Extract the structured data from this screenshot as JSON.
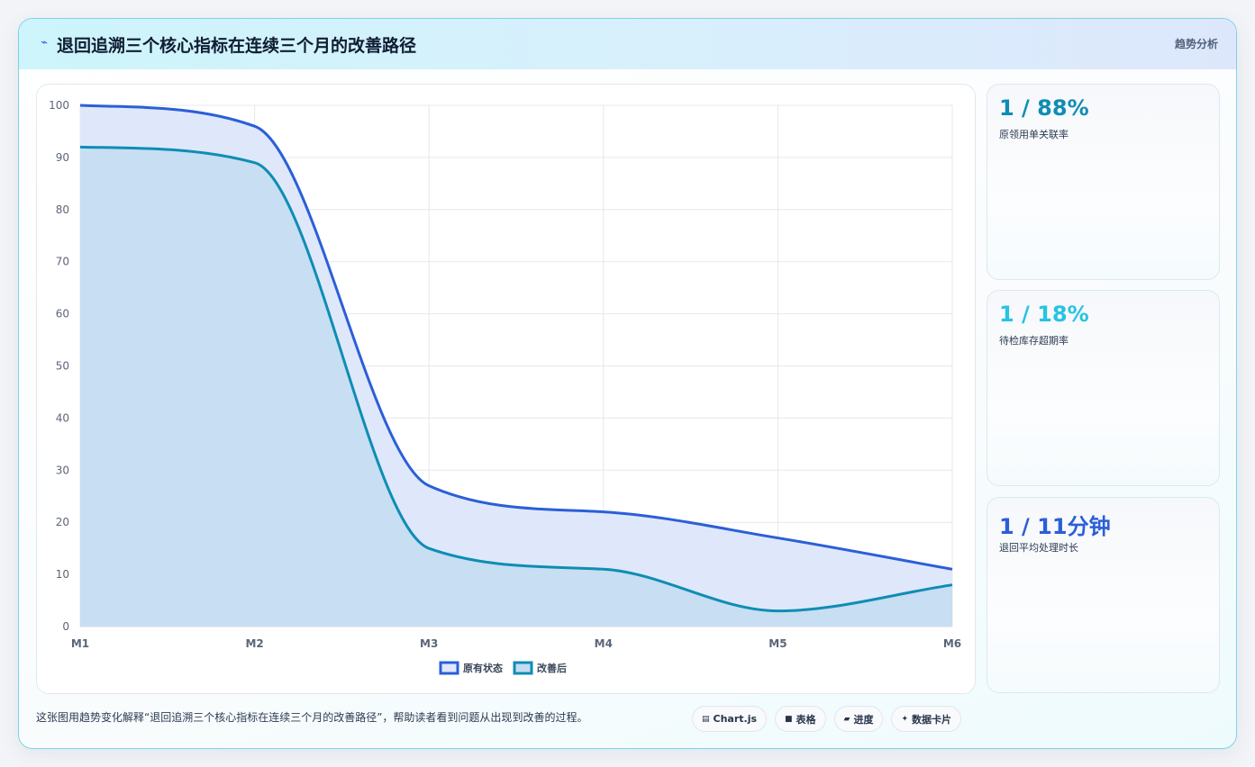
{
  "header": {
    "icon": "lightning-icon",
    "title": "退回追溯三个核心指标在连续三个月的改善路径",
    "badge": "趋势分析"
  },
  "colors": {
    "accent_blue": "#2b5fd8",
    "accent_teal": "#0f8db3",
    "accent_cyan": "#27c3e2",
    "original_fill": "#dfe8fb",
    "improved_fill": "#c4dcf2"
  },
  "chart_data": {
    "type": "area",
    "x": [
      "M1",
      "M2",
      "M3",
      "M4",
      "M5",
      "M6"
    ],
    "ylim": [
      0,
      100
    ],
    "yticks": [
      0,
      10,
      20,
      30,
      40,
      50,
      60,
      70,
      80,
      90,
      100
    ],
    "grid": true,
    "legend_position": "bottom-center",
    "series": [
      {
        "name": "原有状态",
        "values": [
          100,
          96,
          27,
          22,
          17,
          11
        ],
        "color": "#2b5fd8",
        "fill": "#dfe8fb"
      },
      {
        "name": "改善后",
        "values": [
          92,
          89,
          15,
          11,
          3,
          8
        ],
        "color": "#0f8db3",
        "fill": "#c4dcf2"
      }
    ]
  },
  "kpis": [
    {
      "value": "1 / 88%",
      "label": "原领用单关联率",
      "color": "#0f8db3"
    },
    {
      "value": "1 / 18%",
      "label": "待检库存超期率",
      "color": "#27c3e2"
    },
    {
      "value": "1 / 11分钟",
      "label": "退回平均处理时长",
      "color": "#2b5fd8"
    }
  ],
  "footer": {
    "text": "这张图用趋势变化解释“退回追溯三个核心指标在连续三个月的改善路径”，帮助读者看到问题从出现到改善的过程。",
    "chips": [
      {
        "icon": "chart-icon",
        "glyph": "▤",
        "label": "Chart.js"
      },
      {
        "icon": "table-icon",
        "glyph": "■",
        "label": "表格"
      },
      {
        "icon": "progress-icon",
        "glyph": "▰",
        "label": "进度"
      },
      {
        "icon": "card-icon",
        "glyph": "✦",
        "label": "数据卡片"
      }
    ]
  }
}
